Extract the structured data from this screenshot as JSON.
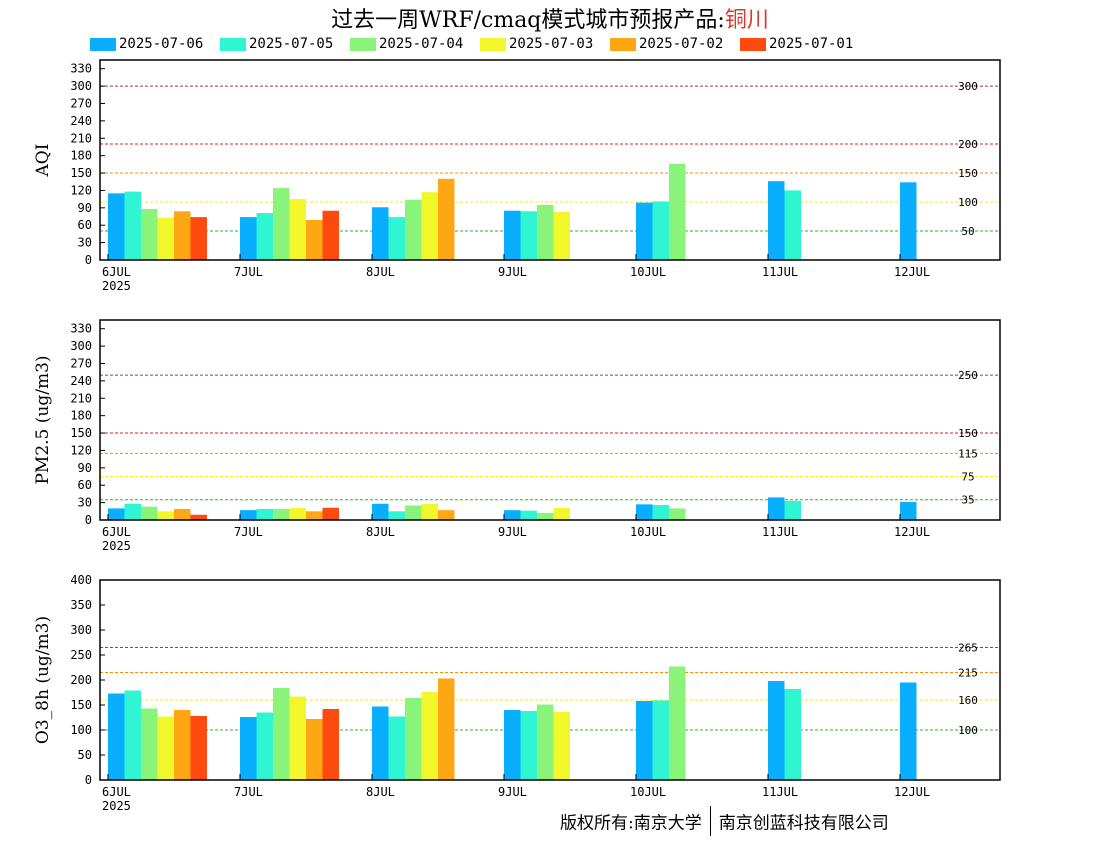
{
  "title": {
    "main": "过去一周WRF/cmaq模式城市预报产品:",
    "city": "铜川"
  },
  "legend": [
    {
      "label": "2025-07-06",
      "color": "#0aaeff"
    },
    {
      "label": "2025-07-05",
      "color": "#2ff5d2"
    },
    {
      "label": "2025-07-04",
      "color": "#8af47a"
    },
    {
      "label": "2025-07-03",
      "color": "#f1f72b"
    },
    {
      "label": "2025-07-02",
      "color": "#ffa615"
    },
    {
      "label": "2025-07-01",
      "color": "#ff4a0f"
    }
  ],
  "footer": {
    "left": "版权所有:南京大学",
    "right": "南京创蓝科技有限公司"
  },
  "chart_data": [
    {
      "type": "bar",
      "ylabel": "AQI",
      "categories": [
        "6JUL",
        "7JUL",
        "8JUL",
        "9JUL",
        "10JUL",
        "11JUL",
        "12JUL"
      ],
      "year_label": "2025",
      "ylim": [
        0,
        345
      ],
      "yticks": [
        0,
        30,
        60,
        90,
        120,
        150,
        180,
        210,
        240,
        270,
        300,
        330
      ],
      "thresholds": [
        {
          "value": 300,
          "label": "300",
          "color": "#a0306e"
        },
        {
          "value": 200,
          "label": "200",
          "color": "#e02020"
        },
        {
          "value": 150,
          "label": "150",
          "color": "#ff8a00"
        },
        {
          "value": 100,
          "label": "100",
          "color": "#ffee00"
        },
        {
          "value": 50,
          "label": "50",
          "color": "#22bb22"
        }
      ],
      "series": [
        {
          "name": "2025-07-06",
          "values": [
            115,
            74,
            91,
            85,
            99,
            136,
            134
          ]
        },
        {
          "name": "2025-07-05",
          "values": [
            118,
            81,
            74,
            84,
            101,
            120,
            null
          ]
        },
        {
          "name": "2025-07-04",
          "values": [
            88,
            124,
            104,
            95,
            166,
            null,
            null
          ]
        },
        {
          "name": "2025-07-03",
          "values": [
            73,
            105,
            117,
            83,
            null,
            null,
            null
          ]
        },
        {
          "name": "2025-07-02",
          "values": [
            84,
            69,
            140,
            null,
            null,
            null,
            null
          ]
        },
        {
          "name": "2025-07-01",
          "values": [
            74,
            85,
            null,
            null,
            null,
            null,
            null
          ]
        }
      ]
    },
    {
      "type": "bar",
      "ylabel": "PM2.5 (ug/m3)",
      "categories": [
        "6JUL",
        "7JUL",
        "8JUL",
        "9JUL",
        "10JUL",
        "11JUL",
        "12JUL"
      ],
      "year_label": "2025",
      "ylim": [
        0,
        345
      ],
      "yticks": [
        0,
        30,
        60,
        90,
        120,
        150,
        180,
        210,
        240,
        270,
        300,
        330
      ],
      "thresholds": [
        {
          "value": 250,
          "label": "250",
          "color": "#a0306e"
        },
        {
          "value": 150,
          "label": "150",
          "color": "#e02020"
        },
        {
          "value": 115,
          "label": "115",
          "color": "#ff8a00"
        },
        {
          "value": 75,
          "label": "75",
          "color": "#ffee00"
        },
        {
          "value": 35,
          "label": "35",
          "color": "#22bb22"
        }
      ],
      "series": [
        {
          "name": "2025-07-06",
          "values": [
            20,
            17,
            28,
            17,
            27,
            39,
            31
          ]
        },
        {
          "name": "2025-07-05",
          "values": [
            28,
            19,
            15,
            16,
            26,
            33,
            null
          ]
        },
        {
          "name": "2025-07-04",
          "values": [
            23,
            19,
            25,
            12,
            20,
            null,
            null
          ]
        },
        {
          "name": "2025-07-03",
          "values": [
            15,
            21,
            28,
            21,
            null,
            null,
            null
          ]
        },
        {
          "name": "2025-07-02",
          "values": [
            19,
            15,
            17,
            null,
            null,
            null,
            null
          ]
        },
        {
          "name": "2025-07-01",
          "values": [
            9,
            21,
            null,
            null,
            null,
            null,
            null
          ]
        }
      ]
    },
    {
      "type": "bar",
      "ylabel": "O3_8h (ug/m3)",
      "categories": [
        "6JUL",
        "7JUL",
        "8JUL",
        "9JUL",
        "10JUL",
        "11JUL",
        "12JUL"
      ],
      "year_label": "2025",
      "ylim": [
        0,
        400
      ],
      "yticks": [
        0,
        50,
        100,
        150,
        200,
        250,
        300,
        350,
        400
      ],
      "thresholds": [
        {
          "value": 265,
          "label": "265",
          "color": "#e02020"
        },
        {
          "value": 215,
          "label": "215",
          "color": "#ff8a00"
        },
        {
          "value": 160,
          "label": "160",
          "color": "#ffee00"
        },
        {
          "value": 100,
          "label": "100",
          "color": "#22bb22"
        }
      ],
      "series": [
        {
          "name": "2025-07-06",
          "values": [
            173,
            126,
            147,
            140,
            158,
            198,
            195
          ]
        },
        {
          "name": "2025-07-05",
          "values": [
            179,
            135,
            127,
            138,
            159,
            182,
            null
          ]
        },
        {
          "name": "2025-07-04",
          "values": [
            143,
            184,
            164,
            151,
            227,
            null,
            null
          ]
        },
        {
          "name": "2025-07-03",
          "values": [
            127,
            167,
            176,
            136,
            null,
            null,
            null
          ]
        },
        {
          "name": "2025-07-02",
          "values": [
            140,
            122,
            203,
            null,
            null,
            null,
            null
          ]
        },
        {
          "name": "2025-07-01",
          "values": [
            128,
            142,
            null,
            null,
            null,
            null,
            null
          ]
        }
      ]
    }
  ]
}
